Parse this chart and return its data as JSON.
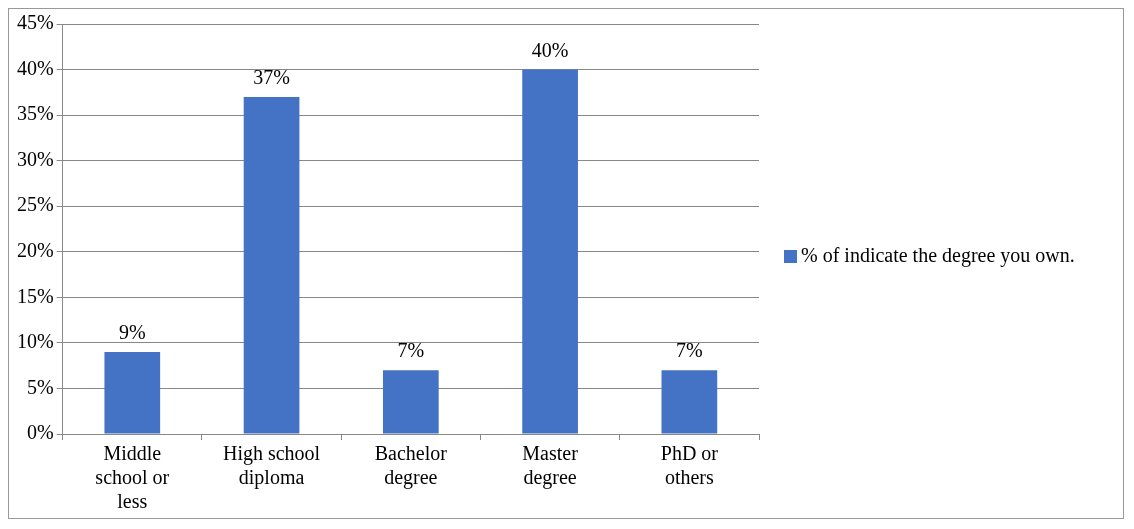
{
  "chart_data": {
    "type": "bar",
    "categories": [
      "Middle school or less",
      "High school diploma",
      "Bachelor degree",
      "Master degree",
      "PhD or others"
    ],
    "series": [
      {
        "name": "% of indicate the degree you own.",
        "color": "#4472c4",
        "values": [
          9,
          37,
          7,
          40,
          7
        ],
        "value_labels": [
          "9%",
          "37%",
          "7%",
          "40%",
          "7%"
        ]
      }
    ],
    "ylim": [
      0,
      45
    ],
    "yticks": [
      {
        "value": 0,
        "label": "0%"
      },
      {
        "value": 5,
        "label": "5%"
      },
      {
        "value": 10,
        "label": "10%"
      },
      {
        "value": 15,
        "label": "15%"
      },
      {
        "value": 20,
        "label": "20%"
      },
      {
        "value": 25,
        "label": "25%"
      },
      {
        "value": 30,
        "label": "30%"
      },
      {
        "value": 35,
        "label": "35%"
      },
      {
        "value": 40,
        "label": "40%"
      },
      {
        "value": 45,
        "label": "45%"
      }
    ],
    "grid": "y",
    "legend": "right"
  }
}
